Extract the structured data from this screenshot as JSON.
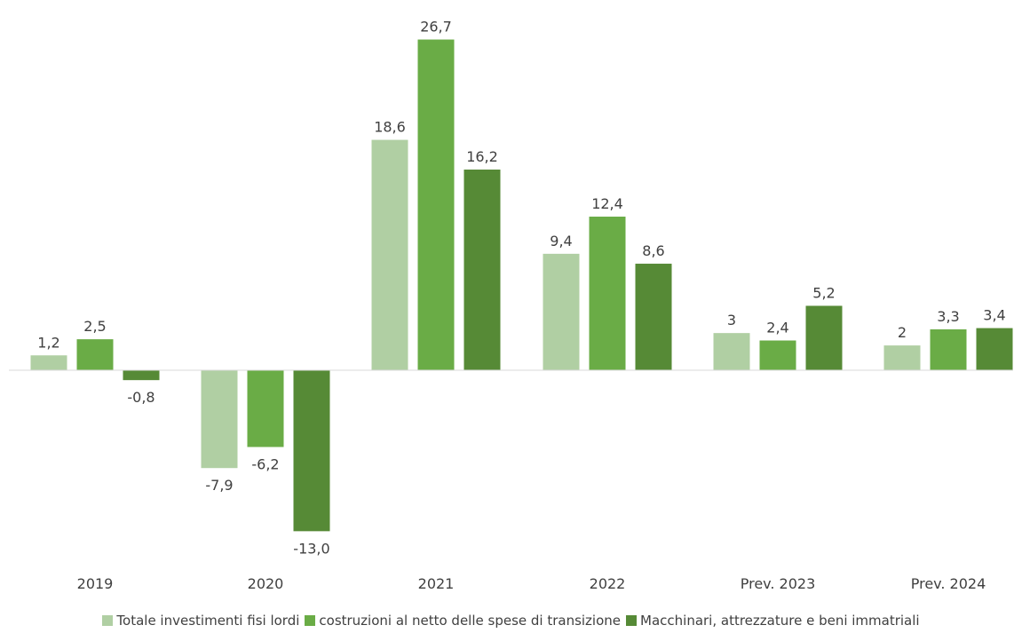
{
  "chart_data": {
    "type": "bar",
    "categories": [
      "2019",
      "2020",
      "2021",
      "2022",
      "Prev. 2023",
      "Prev. 2024"
    ],
    "series": [
      {
        "name": "Totale investimenti  fisi lordi",
        "color": "#b0cfa3",
        "values": [
          1.2,
          -7.9,
          18.6,
          9.4,
          3,
          2
        ],
        "labels": [
          "1,2",
          "-7,9",
          "18,6",
          "9,4",
          "3",
          "2"
        ]
      },
      {
        "name": "costruzioni al netto delle  spese di transizione",
        "color": "#6aac46",
        "values": [
          2.5,
          -6.2,
          26.7,
          12.4,
          2.4,
          3.3
        ],
        "labels": [
          "2,5",
          "-6,2",
          "26,7",
          "12,4",
          "2,4",
          "3,3"
        ]
      },
      {
        "name": "Macchinari, attrezzature e beni immatriali",
        "color": "#568a36",
        "values": [
          -0.8,
          -13.0,
          16.2,
          8.6,
          5.2,
          3.4
        ],
        "labels": [
          "-0,8",
          "-13,0",
          "16,2",
          "8,6",
          "5,2",
          "3,4"
        ]
      }
    ],
    "title": "",
    "xlabel": "",
    "ylabel": "",
    "ylim": [
      -13.0,
      26.7
    ],
    "grid": false,
    "legend_position": "bottom"
  }
}
